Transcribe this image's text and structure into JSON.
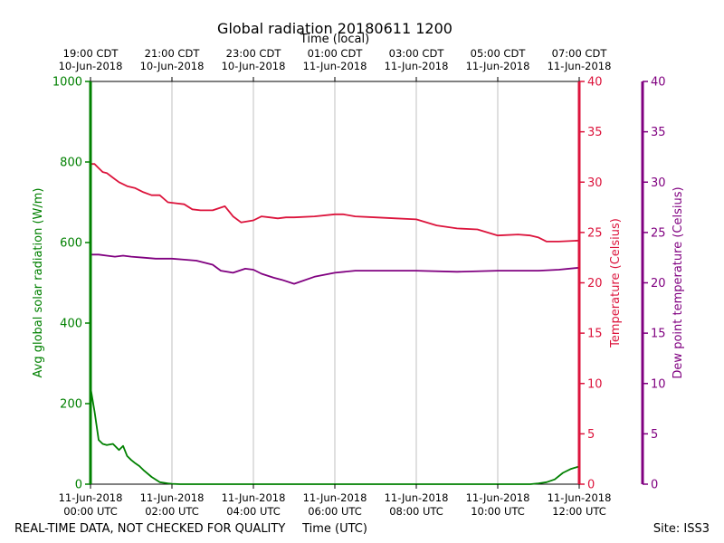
{
  "chart_data": {
    "type": "line",
    "title": "Global radiation 20180611 1200",
    "top_axis_label": "Time (local)",
    "xlabel": "Time (UTC)",
    "footer_left": "REAL-TIME DATA, NOT CHECKED FOR QUALITY",
    "footer_right": "Site: ISS3",
    "x_unit": "hours since 11-Jun-2018 00:00 UTC",
    "xlim": [
      0,
      12
    ],
    "grid": true,
    "bottom_ticks": [
      {
        "x": 0,
        "line1": "11-Jun-2018",
        "line2": "00:00 UTC"
      },
      {
        "x": 2,
        "line1": "11-Jun-2018",
        "line2": "02:00 UTC"
      },
      {
        "x": 4,
        "line1": "11-Jun-2018",
        "line2": "04:00 UTC"
      },
      {
        "x": 6,
        "line1": "11-Jun-2018",
        "line2": "06:00 UTC"
      },
      {
        "x": 8,
        "line1": "11-Jun-2018",
        "line2": "08:00 UTC"
      },
      {
        "x": 10,
        "line1": "11-Jun-2018",
        "line2": "10:00 UTC"
      },
      {
        "x": 12,
        "line1": "11-Jun-2018",
        "line2": "12:00 UTC"
      }
    ],
    "top_ticks": [
      {
        "x": 0,
        "line1": "19:00 CDT",
        "line2": "10-Jun-2018"
      },
      {
        "x": 2,
        "line1": "21:00 CDT",
        "line2": "10-Jun-2018"
      },
      {
        "x": 4,
        "line1": "23:00 CDT",
        "line2": "10-Jun-2018"
      },
      {
        "x": 6,
        "line1": "01:00 CDT",
        "line2": "11-Jun-2018"
      },
      {
        "x": 8,
        "line1": "03:00 CDT",
        "line2": "11-Jun-2018"
      },
      {
        "x": 10,
        "line1": "05:00 CDT",
        "line2": "11-Jun-2018"
      },
      {
        "x": 12,
        "line1": "07:00 CDT",
        "line2": "11-Jun-2018"
      }
    ],
    "axes": [
      {
        "id": "radiation",
        "label": "Avg global solar radiation (W/m)",
        "color": "#008000",
        "ylim": [
          0,
          1000
        ],
        "ticks": [
          0,
          200,
          400,
          600,
          800,
          1000
        ]
      },
      {
        "id": "temperature",
        "label": "Temperature (Celsius)",
        "color": "#dc143c",
        "ylim": [
          0,
          40
        ],
        "ticks": [
          0,
          5,
          10,
          15,
          20,
          25,
          30,
          35,
          40
        ]
      },
      {
        "id": "dewpoint",
        "label": "Dew point temperature (Celsius)",
        "color": "#800080",
        "ylim": [
          0,
          40
        ],
        "ticks": [
          0,
          5,
          10,
          15,
          20,
          25,
          30,
          35,
          40
        ]
      }
    ],
    "series": [
      {
        "axis": "radiation",
        "color": "#008000",
        "x": [
          0,
          0.1,
          0.2,
          0.3,
          0.4,
          0.55,
          0.7,
          0.8,
          0.9,
          1.0,
          1.1,
          1.2,
          1.3,
          1.5,
          1.7,
          1.9,
          2.0,
          2.2,
          2.5,
          3,
          4,
          5,
          6,
          7,
          8,
          9,
          10,
          10.5,
          10.8,
          11.0,
          11.2,
          11.4,
          11.6,
          11.8,
          12.0
        ],
        "values": [
          240,
          180,
          110,
          100,
          97,
          100,
          85,
          95,
          70,
          60,
          52,
          45,
          35,
          18,
          5,
          2,
          1,
          0,
          0,
          0,
          0,
          0,
          0,
          0,
          0,
          0,
          0,
          0,
          0,
          2,
          5,
          12,
          28,
          38,
          44
        ]
      },
      {
        "axis": "temperature",
        "color": "#dc143c",
        "x": [
          0,
          0.1,
          0.2,
          0.3,
          0.4,
          0.5,
          0.7,
          0.9,
          1.1,
          1.3,
          1.5,
          1.7,
          1.9,
          2.1,
          2.3,
          2.5,
          2.7,
          3.0,
          3.3,
          3.5,
          3.7,
          4.0,
          4.2,
          4.4,
          4.6,
          4.8,
          5.0,
          5.5,
          6.0,
          6.2,
          6.5,
          7.0,
          7.5,
          8.0,
          8.5,
          9.0,
          9.5,
          10.0,
          10.5,
          10.8,
          11.0,
          11.2,
          11.5,
          12.0
        ],
        "values": [
          31.8,
          31.8,
          31.4,
          31.0,
          30.9,
          30.6,
          30.0,
          29.6,
          29.4,
          29.0,
          28.7,
          28.7,
          28.0,
          27.9,
          27.8,
          27.3,
          27.2,
          27.2,
          27.6,
          26.6,
          26.0,
          26.2,
          26.6,
          26.5,
          26.4,
          26.5,
          26.5,
          26.6,
          26.8,
          26.8,
          26.6,
          26.5,
          26.4,
          26.3,
          25.7,
          25.4,
          25.3,
          24.7,
          24.8,
          24.7,
          24.5,
          24.1,
          24.1,
          24.2
        ]
      },
      {
        "axis": "dewpoint",
        "color": "#800080",
        "x": [
          0,
          0.2,
          0.4,
          0.6,
          0.8,
          1.0,
          1.3,
          1.6,
          2.0,
          2.3,
          2.6,
          3.0,
          3.2,
          3.5,
          3.8,
          4.0,
          4.2,
          4.5,
          4.7,
          5.0,
          5.5,
          6.0,
          6.5,
          7.0,
          7.5,
          8.0,
          9.0,
          10.0,
          11.0,
          11.5,
          12.0
        ],
        "values": [
          22.8,
          22.8,
          22.7,
          22.6,
          22.7,
          22.6,
          22.5,
          22.4,
          22.4,
          22.3,
          22.2,
          21.8,
          21.2,
          21.0,
          21.4,
          21.3,
          20.9,
          20.5,
          20.3,
          19.9,
          20.6,
          21.0,
          21.2,
          21.2,
          21.2,
          21.2,
          21.1,
          21.2,
          21.2,
          21.3,
          21.5
        ]
      }
    ]
  }
}
